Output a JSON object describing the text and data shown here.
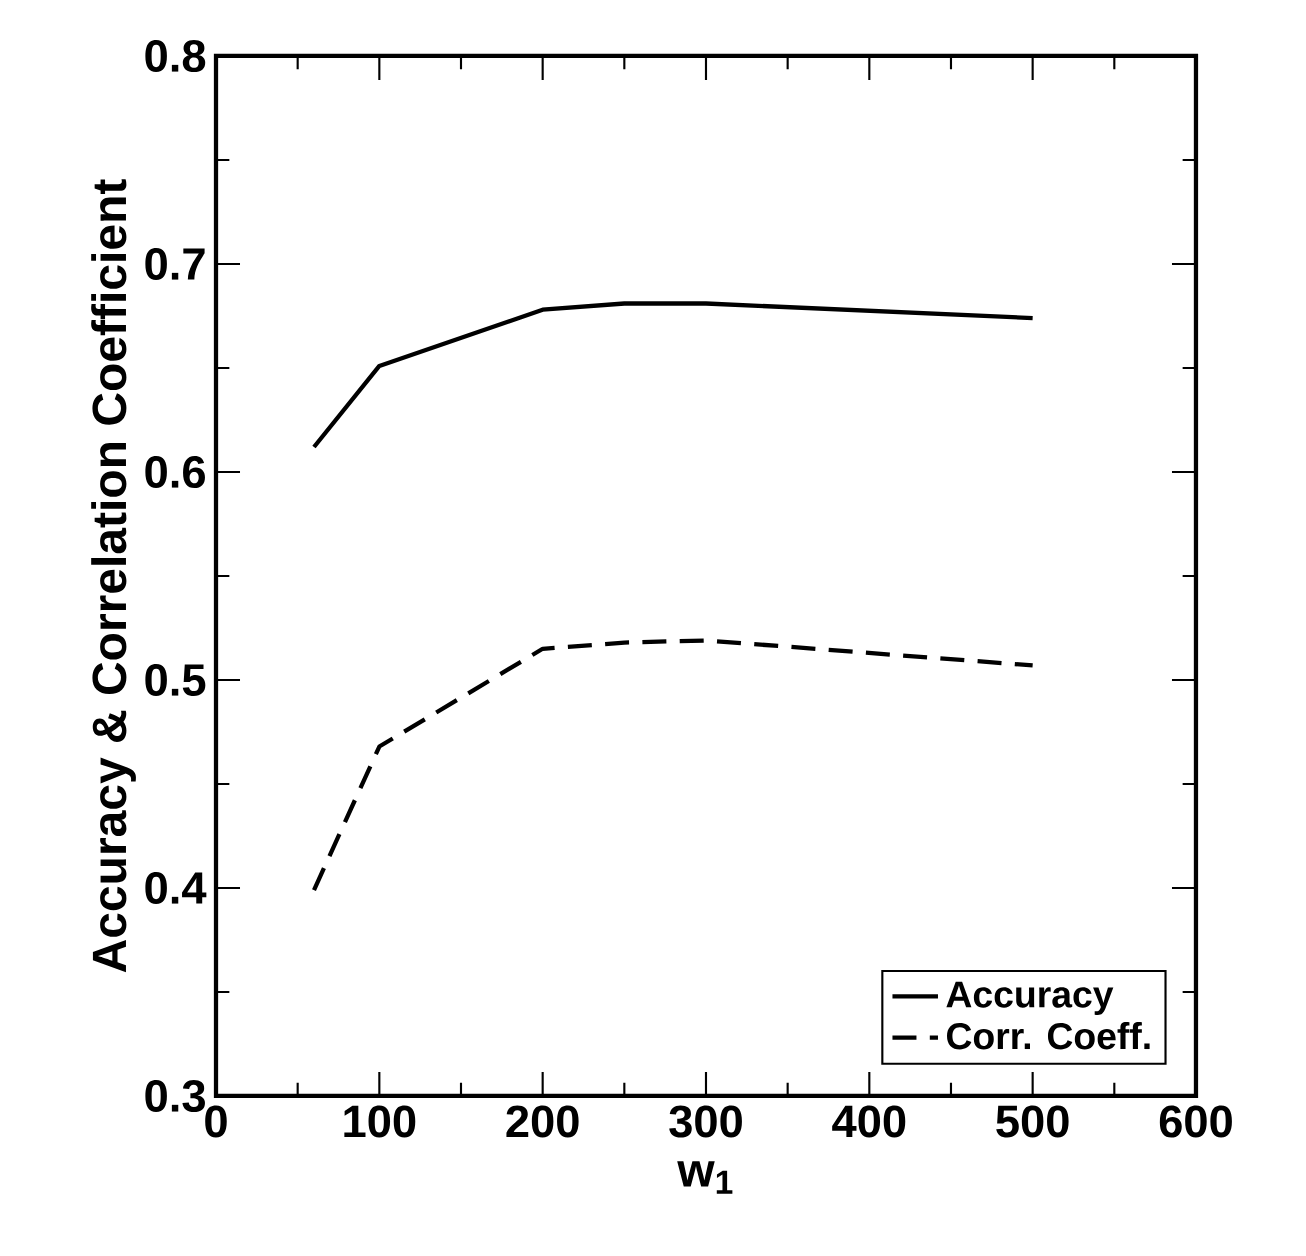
{
  "chart_data": {
    "type": "line",
    "xlabel": "w$_{1}$",
    "ylabel": "Accuracy & Correlation Coefficient",
    "x": [
      60,
      100,
      200,
      250,
      300,
      500
    ],
    "series": [
      {
        "name": "Accuracy",
        "color": "#000000",
        "line_style": "solid",
        "values": [
          0.612,
          0.651,
          0.678,
          0.681,
          0.681,
          0.674
        ]
      },
      {
        "name": "Corr. Coeff.",
        "color": "#000000",
        "line_style": "dashed",
        "values": [
          0.399,
          0.468,
          0.515,
          0.518,
          0.519,
          0.507
        ]
      }
    ],
    "xlim": [
      0,
      600
    ],
    "ylim": [
      0.3,
      0.8
    ],
    "xticks": [
      0,
      100,
      200,
      300,
      400,
      500,
      600
    ],
    "yticks": [
      0.3,
      0.4,
      0.5,
      0.6,
      0.7,
      0.8
    ],
    "legend": "bottom right"
  }
}
